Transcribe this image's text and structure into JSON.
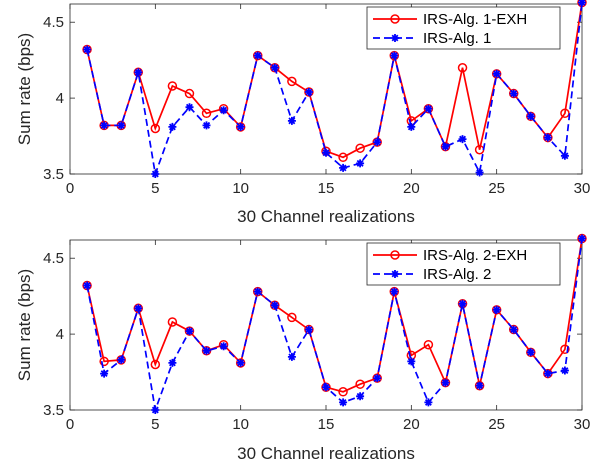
{
  "colors": {
    "exh": "#ff0000",
    "alg": "#0000ff",
    "axis": "#262626"
  },
  "chart_data": [
    {
      "type": "line",
      "xlabel": "30 Channel realizations",
      "ylabel": "Sum rate (bps)",
      "xlim": [
        0,
        30
      ],
      "ylim": [
        3.5,
        4.62
      ],
      "xticks": [
        0,
        5,
        10,
        15,
        20,
        25,
        30
      ],
      "yticks": [
        3.5,
        4,
        4.5
      ],
      "xtick_labels": [
        "0",
        "5",
        "10",
        "15",
        "20",
        "25",
        "30"
      ],
      "ytick_labels": [
        "3.5",
        "4",
        "4.5"
      ],
      "grid": false,
      "legend_position": "top-right",
      "x": [
        1,
        2,
        3,
        4,
        5,
        6,
        7,
        8,
        9,
        10,
        11,
        12,
        13,
        14,
        15,
        16,
        17,
        18,
        19,
        20,
        21,
        22,
        23,
        24,
        25,
        26,
        27,
        28,
        29,
        30
      ],
      "series": [
        {
          "name": "IRS-Alg. 1-EXH",
          "style": "solid-circle",
          "values": [
            4.32,
            3.82,
            3.82,
            4.17,
            3.8,
            4.08,
            4.03,
            3.9,
            3.93,
            3.81,
            4.28,
            4.2,
            4.11,
            4.04,
            3.65,
            3.61,
            3.67,
            3.71,
            4.28,
            3.85,
            3.93,
            3.68,
            4.2,
            3.66,
            4.16,
            4.03,
            3.88,
            3.74,
            3.9,
            4.63
          ]
        },
        {
          "name": "IRS-Alg. 1",
          "style": "dashed-star",
          "values": [
            4.32,
            3.82,
            3.82,
            4.17,
            3.5,
            3.81,
            3.94,
            3.82,
            3.92,
            3.81,
            4.28,
            4.2,
            3.85,
            4.04,
            3.64,
            3.54,
            3.57,
            3.71,
            4.28,
            3.81,
            3.93,
            3.68,
            3.73,
            3.51,
            4.16,
            4.03,
            3.88,
            3.74,
            3.62,
            4.63
          ]
        }
      ]
    },
    {
      "type": "line",
      "xlabel": "30 Channel realizations",
      "ylabel": "Sum rate (bps)",
      "xlim": [
        0,
        30
      ],
      "ylim": [
        3.5,
        4.62
      ],
      "xticks": [
        0,
        5,
        10,
        15,
        20,
        25,
        30
      ],
      "yticks": [
        3.5,
        4,
        4.5
      ],
      "xtick_labels": [
        "0",
        "5",
        "10",
        "15",
        "20",
        "25",
        "30"
      ],
      "ytick_labels": [
        "3.5",
        "4",
        "4.5"
      ],
      "grid": false,
      "legend_position": "top-right",
      "x": [
        1,
        2,
        3,
        4,
        5,
        6,
        7,
        8,
        9,
        10,
        11,
        12,
        13,
        14,
        15,
        16,
        17,
        18,
        19,
        20,
        21,
        22,
        23,
        24,
        25,
        26,
        27,
        28,
        29,
        30
      ],
      "series": [
        {
          "name": "IRS-Alg. 2-EXH",
          "style": "solid-circle",
          "values": [
            4.32,
            3.82,
            3.83,
            4.17,
            3.8,
            4.08,
            4.02,
            3.89,
            3.93,
            3.81,
            4.28,
            4.19,
            4.11,
            4.03,
            3.65,
            3.62,
            3.67,
            3.71,
            4.28,
            3.86,
            3.93,
            3.68,
            4.2,
            3.66,
            4.16,
            4.03,
            3.88,
            3.74,
            3.9,
            4.63
          ]
        },
        {
          "name": "IRS-Alg. 2",
          "style": "dashed-star",
          "values": [
            4.32,
            3.74,
            3.83,
            4.17,
            3.5,
            3.81,
            4.02,
            3.89,
            3.92,
            3.81,
            4.28,
            4.19,
            3.85,
            4.03,
            3.65,
            3.55,
            3.59,
            3.71,
            4.28,
            3.82,
            3.55,
            3.68,
            4.2,
            3.66,
            4.16,
            4.03,
            3.88,
            3.74,
            3.76,
            4.63
          ]
        }
      ]
    }
  ]
}
